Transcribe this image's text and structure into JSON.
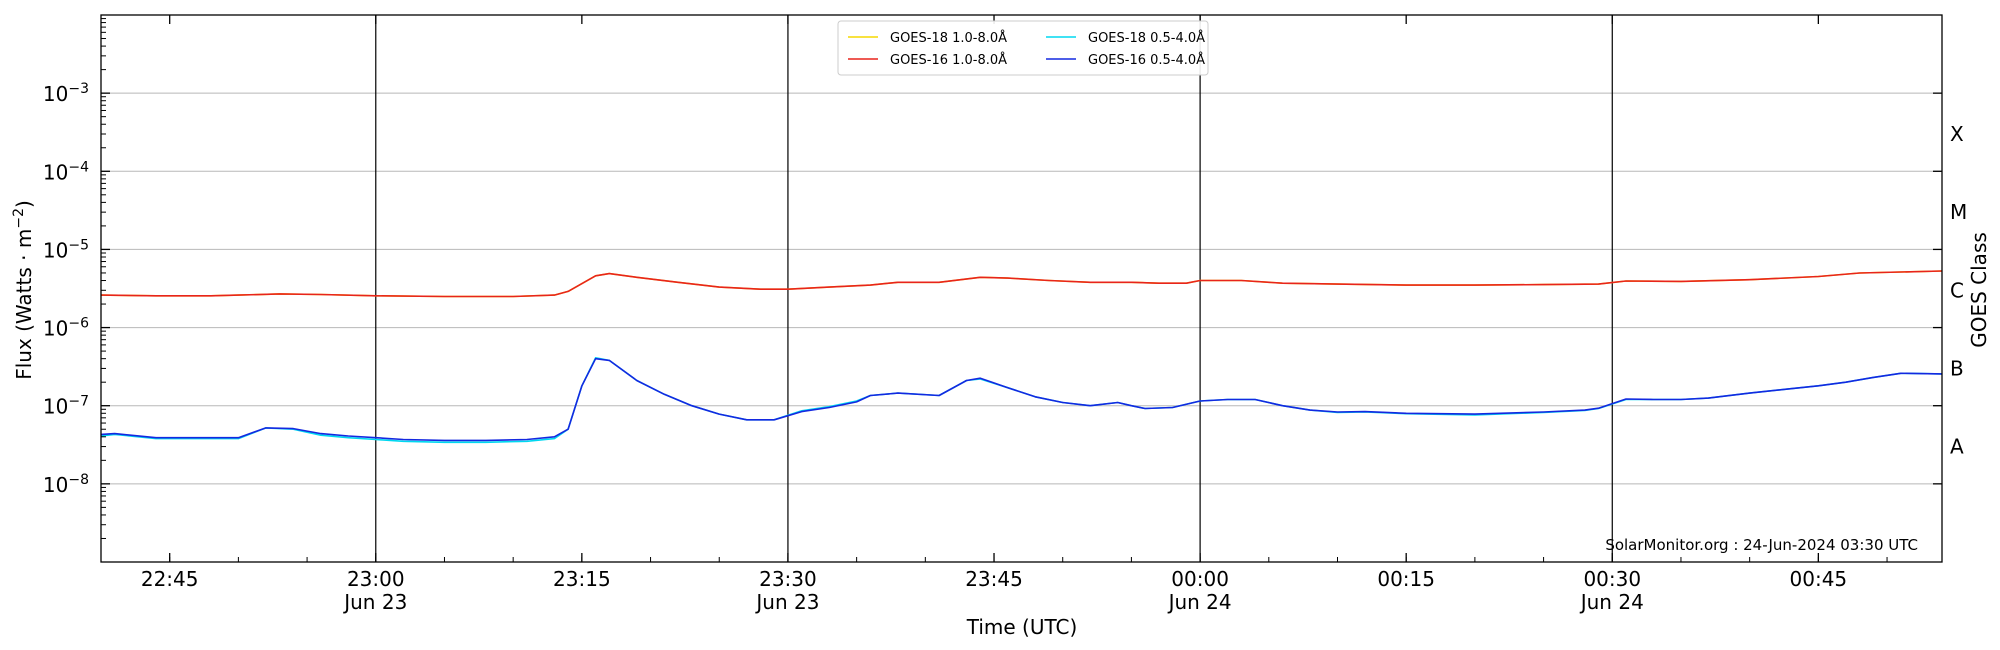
{
  "chart_data": {
    "type": "line",
    "xlabel": "Time (UTC)",
    "ylabel": "Flux (Watts · m",
    "ylabel_sup": "−2",
    "ylabel_close": ")",
    "right_label": "GOES Class",
    "xlim": [
      "22:40",
      "00:54"
    ],
    "ylim": [
      1e-09,
      0.01
    ],
    "y_scale": "log",
    "grid": "horizontal",
    "legend_position": "top-center",
    "credit": "SolarMonitor.org : 24-Jun-2024 03:30 UTC",
    "x_ticks": [
      {
        "t": "22:45",
        "label": "22:45",
        "sub": ""
      },
      {
        "t": "23:00",
        "label": "23:00",
        "sub": "Jun 23"
      },
      {
        "t": "23:15",
        "label": "23:15",
        "sub": ""
      },
      {
        "t": "23:30",
        "label": "23:30",
        "sub": "Jun 23"
      },
      {
        "t": "23:45",
        "label": "23:45",
        "sub": ""
      },
      {
        "t": "00:00",
        "label": "00:00",
        "sub": "Jun 24"
      },
      {
        "t": "00:15",
        "label": "00:15",
        "sub": ""
      },
      {
        "t": "00:30",
        "label": "00:30",
        "sub": "Jun 24"
      },
      {
        "t": "00:45",
        "label": "00:45",
        "sub": ""
      }
    ],
    "vertical_markers": [
      "23:00",
      "23:30",
      "00:00",
      "00:30"
    ],
    "y_ticks": [
      {
        "value": 0.001,
        "base": "10",
        "exp": "−3"
      },
      {
        "value": 0.0001,
        "base": "10",
        "exp": "−4"
      },
      {
        "value": 1e-05,
        "base": "10",
        "exp": "−5"
      },
      {
        "value": 1e-06,
        "base": "10",
        "exp": "−6"
      },
      {
        "value": 1e-07,
        "base": "10",
        "exp": "−7"
      },
      {
        "value": 1e-08,
        "base": "10",
        "exp": "−8"
      }
    ],
    "goes_classes": [
      {
        "label": "A",
        "value": 3e-08
      },
      {
        "label": "B",
        "value": 3e-07
      },
      {
        "label": "C",
        "value": 3e-06
      },
      {
        "label": "M",
        "value": 3e-05
      },
      {
        "label": "X",
        "value": 0.0003
      }
    ],
    "series": [
      {
        "name": "GOES-18 1.0-8.0Å",
        "color": "#f5d800",
        "points": [
          [
            "22:40",
            2.6e-06
          ],
          [
            "22:44",
            2.55e-06
          ],
          [
            "22:48",
            2.55e-06
          ],
          [
            "22:50",
            2.6e-06
          ],
          [
            "22:53",
            2.7e-06
          ],
          [
            "22:56",
            2.65e-06
          ],
          [
            "23:00",
            2.55e-06
          ],
          [
            "23:05",
            2.5e-06
          ],
          [
            "23:10",
            2.5e-06
          ],
          [
            "23:13",
            2.6e-06
          ],
          [
            "23:14",
            2.9e-06
          ],
          [
            "23:16",
            4.6e-06
          ],
          [
            "23:17",
            4.9e-06
          ],
          [
            "23:19",
            4.4e-06
          ],
          [
            "23:22",
            3.8e-06
          ],
          [
            "23:25",
            3.3e-06
          ],
          [
            "23:28",
            3.1e-06
          ],
          [
            "23:30",
            3.1e-06
          ],
          [
            "23:33",
            3.3e-06
          ],
          [
            "23:36",
            3.5e-06
          ],
          [
            "23:38",
            3.8e-06
          ],
          [
            "23:41",
            3.8e-06
          ],
          [
            "23:44",
            4.4e-06
          ],
          [
            "23:46",
            4.3e-06
          ],
          [
            "23:49",
            4e-06
          ],
          [
            "23:52",
            3.8e-06
          ],
          [
            "23:55",
            3.8e-06
          ],
          [
            "23:57",
            3.7e-06
          ],
          [
            "23:59",
            3.7e-06
          ],
          [
            "00:00",
            4e-06
          ],
          [
            "00:03",
            4e-06
          ],
          [
            "00:06",
            3.7e-06
          ],
          [
            "00:10",
            3.6e-06
          ],
          [
            "00:15",
            3.5e-06
          ],
          [
            "00:20",
            3.5e-06
          ],
          [
            "00:25",
            3.55e-06
          ],
          [
            "00:29",
            3.6e-06
          ],
          [
            "00:31",
            3.95e-06
          ],
          [
            "00:35",
            3.9e-06
          ],
          [
            "00:40",
            4.1e-06
          ],
          [
            "00:45",
            4.5e-06
          ],
          [
            "00:48",
            5e-06
          ],
          [
            "00:54",
            5.3e-06
          ]
        ]
      },
      {
        "name": "GOES-18 0.5-4.0Å",
        "color": "#00d8f0",
        "points": [
          [
            "22:40",
            4.1e-08
          ],
          [
            "22:41",
            4.3e-08
          ],
          [
            "22:44",
            3.8e-08
          ],
          [
            "22:48",
            3.8e-08
          ],
          [
            "22:50",
            3.8e-08
          ],
          [
            "22:52",
            5.2e-08
          ],
          [
            "22:54",
            5e-08
          ],
          [
            "22:56",
            4.2e-08
          ],
          [
            "22:58",
            3.9e-08
          ],
          [
            "23:00",
            3.7e-08
          ],
          [
            "23:02",
            3.5e-08
          ],
          [
            "23:05",
            3.4e-08
          ],
          [
            "23:08",
            3.4e-08
          ],
          [
            "23:11",
            3.5e-08
          ],
          [
            "23:13",
            3.8e-08
          ],
          [
            "23:14",
            5e-08
          ],
          [
            "23:15",
            1.8e-07
          ],
          [
            "23:16",
            4.1e-07
          ],
          [
            "23:17",
            3.8e-07
          ],
          [
            "23:19",
            2.1e-07
          ],
          [
            "23:21",
            1.4e-07
          ],
          [
            "23:23",
            1e-07
          ],
          [
            "23:25",
            7.8e-08
          ],
          [
            "23:27",
            6.6e-08
          ],
          [
            "23:29",
            6.6e-08
          ],
          [
            "23:31",
            8.6e-08
          ],
          [
            "23:33",
            9.7e-08
          ],
          [
            "23:35",
            1.15e-07
          ],
          [
            "23:36",
            1.35e-07
          ],
          [
            "23:38",
            1.45e-07
          ],
          [
            "23:41",
            1.35e-07
          ],
          [
            "23:43",
            2.1e-07
          ],
          [
            "23:44",
            2.2e-07
          ],
          [
            "23:46",
            1.7e-07
          ],
          [
            "23:48",
            1.3e-07
          ],
          [
            "23:50",
            1.1e-07
          ],
          [
            "23:52",
            1e-07
          ],
          [
            "23:54",
            1.1e-07
          ],
          [
            "23:55",
            1e-07
          ],
          [
            "23:56",
            9.2e-08
          ],
          [
            "23:58",
            9.5e-08
          ],
          [
            "00:00",
            1.15e-07
          ],
          [
            "00:02",
            1.2e-07
          ],
          [
            "00:04",
            1.2e-07
          ],
          [
            "00:06",
            1e-07
          ],
          [
            "00:08",
            8.8e-08
          ],
          [
            "00:10",
            8.2e-08
          ],
          [
            "00:12",
            8.3e-08
          ],
          [
            "00:15",
            7.9e-08
          ],
          [
            "00:20",
            7.6e-08
          ],
          [
            "00:25",
            8.2e-08
          ],
          [
            "00:28",
            8.7e-08
          ],
          [
            "00:29",
            9.2e-08
          ],
          [
            "00:31",
            1.2e-07
          ],
          [
            "00:33",
            1.2e-07
          ],
          [
            "00:35",
            1.2e-07
          ],
          [
            "00:37",
            1.25e-07
          ],
          [
            "00:40",
            1.45e-07
          ],
          [
            "00:43",
            1.65e-07
          ],
          [
            "00:45",
            1.8e-07
          ],
          [
            "00:47",
            2e-07
          ],
          [
            "00:49",
            2.3e-07
          ],
          [
            "00:51",
            2.6e-07
          ],
          [
            "00:54",
            2.55e-07
          ]
        ]
      },
      {
        "name": "GOES-16 1.0-8.0Å",
        "color": "#e8241c",
        "points": [
          [
            "22:40",
            2.6e-06
          ],
          [
            "22:44",
            2.55e-06
          ],
          [
            "22:48",
            2.55e-06
          ],
          [
            "22:50",
            2.6e-06
          ],
          [
            "22:53",
            2.7e-06
          ],
          [
            "22:56",
            2.65e-06
          ],
          [
            "23:00",
            2.55e-06
          ],
          [
            "23:05",
            2.5e-06
          ],
          [
            "23:10",
            2.5e-06
          ],
          [
            "23:13",
            2.6e-06
          ],
          [
            "23:14",
            2.9e-06
          ],
          [
            "23:16",
            4.6e-06
          ],
          [
            "23:17",
            4.9e-06
          ],
          [
            "23:19",
            4.4e-06
          ],
          [
            "23:22",
            3.8e-06
          ],
          [
            "23:25",
            3.3e-06
          ],
          [
            "23:28",
            3.1e-06
          ],
          [
            "23:30",
            3.1e-06
          ],
          [
            "23:33",
            3.3e-06
          ],
          [
            "23:36",
            3.5e-06
          ],
          [
            "23:38",
            3.8e-06
          ],
          [
            "23:41",
            3.8e-06
          ],
          [
            "23:44",
            4.4e-06
          ],
          [
            "23:46",
            4.3e-06
          ],
          [
            "23:49",
            4e-06
          ],
          [
            "23:52",
            3.8e-06
          ],
          [
            "23:55",
            3.8e-06
          ],
          [
            "23:57",
            3.7e-06
          ],
          [
            "23:59",
            3.7e-06
          ],
          [
            "00:00",
            4e-06
          ],
          [
            "00:03",
            4e-06
          ],
          [
            "00:06",
            3.7e-06
          ],
          [
            "00:10",
            3.6e-06
          ],
          [
            "00:15",
            3.5e-06
          ],
          [
            "00:20",
            3.5e-06
          ],
          [
            "00:25",
            3.55e-06
          ],
          [
            "00:29",
            3.6e-06
          ],
          [
            "00:31",
            3.95e-06
          ],
          [
            "00:35",
            3.9e-06
          ],
          [
            "00:40",
            4.1e-06
          ],
          [
            "00:45",
            4.5e-06
          ],
          [
            "00:48",
            5e-06
          ],
          [
            "00:54",
            5.3e-06
          ]
        ]
      },
      {
        "name": "GOES-16 0.5-4.0Å",
        "color": "#1428e0",
        "points": [
          [
            "22:40",
            4.3e-08
          ],
          [
            "22:41",
            4.4e-08
          ],
          [
            "22:44",
            3.9e-08
          ],
          [
            "22:48",
            3.9e-08
          ],
          [
            "22:50",
            3.9e-08
          ],
          [
            "22:52",
            5.2e-08
          ],
          [
            "22:54",
            5.1e-08
          ],
          [
            "22:56",
            4.4e-08
          ],
          [
            "22:58",
            4.1e-08
          ],
          [
            "23:00",
            3.9e-08
          ],
          [
            "23:02",
            3.7e-08
          ],
          [
            "23:05",
            3.6e-08
          ],
          [
            "23:08",
            3.6e-08
          ],
          [
            "23:11",
            3.7e-08
          ],
          [
            "23:13",
            4e-08
          ],
          [
            "23:14",
            5e-08
          ],
          [
            "23:15",
            1.8e-07
          ],
          [
            "23:16",
            4e-07
          ],
          [
            "23:17",
            3.8e-07
          ],
          [
            "23:19",
            2.1e-07
          ],
          [
            "23:21",
            1.4e-07
          ],
          [
            "23:23",
            1e-07
          ],
          [
            "23:25",
            7.8e-08
          ],
          [
            "23:27",
            6.6e-08
          ],
          [
            "23:29",
            6.6e-08
          ],
          [
            "23:31",
            8.4e-08
          ],
          [
            "23:33",
            9.5e-08
          ],
          [
            "23:35",
            1.12e-07
          ],
          [
            "23:36",
            1.35e-07
          ],
          [
            "23:38",
            1.45e-07
          ],
          [
            "23:41",
            1.35e-07
          ],
          [
            "23:43",
            2.1e-07
          ],
          [
            "23:44",
            2.25e-07
          ],
          [
            "23:46",
            1.7e-07
          ],
          [
            "23:48",
            1.3e-07
          ],
          [
            "23:50",
            1.1e-07
          ],
          [
            "23:52",
            1e-07
          ],
          [
            "23:54",
            1.1e-07
          ],
          [
            "23:55",
            1e-07
          ],
          [
            "23:56",
            9.2e-08
          ],
          [
            "23:58",
            9.5e-08
          ],
          [
            "00:00",
            1.15e-07
          ],
          [
            "00:02",
            1.2e-07
          ],
          [
            "00:04",
            1.2e-07
          ],
          [
            "00:06",
            1e-07
          ],
          [
            "00:08",
            8.8e-08
          ],
          [
            "00:10",
            8.3e-08
          ],
          [
            "00:12",
            8.4e-08
          ],
          [
            "00:15",
            8e-08
          ],
          [
            "00:20",
            7.8e-08
          ],
          [
            "00:25",
            8.3e-08
          ],
          [
            "00:28",
            8.8e-08
          ],
          [
            "00:29",
            9.3e-08
          ],
          [
            "00:31",
            1.22e-07
          ],
          [
            "00:33",
            1.2e-07
          ],
          [
            "00:35",
            1.2e-07
          ],
          [
            "00:37",
            1.25e-07
          ],
          [
            "00:40",
            1.45e-07
          ],
          [
            "00:43",
            1.65e-07
          ],
          [
            "00:45",
            1.8e-07
          ],
          [
            "00:47",
            2e-07
          ],
          [
            "00:49",
            2.3e-07
          ],
          [
            "00:51",
            2.6e-07
          ],
          [
            "00:54",
            2.55e-07
          ]
        ]
      }
    ],
    "legend_order": [
      0,
      1,
      2,
      3
    ]
  }
}
